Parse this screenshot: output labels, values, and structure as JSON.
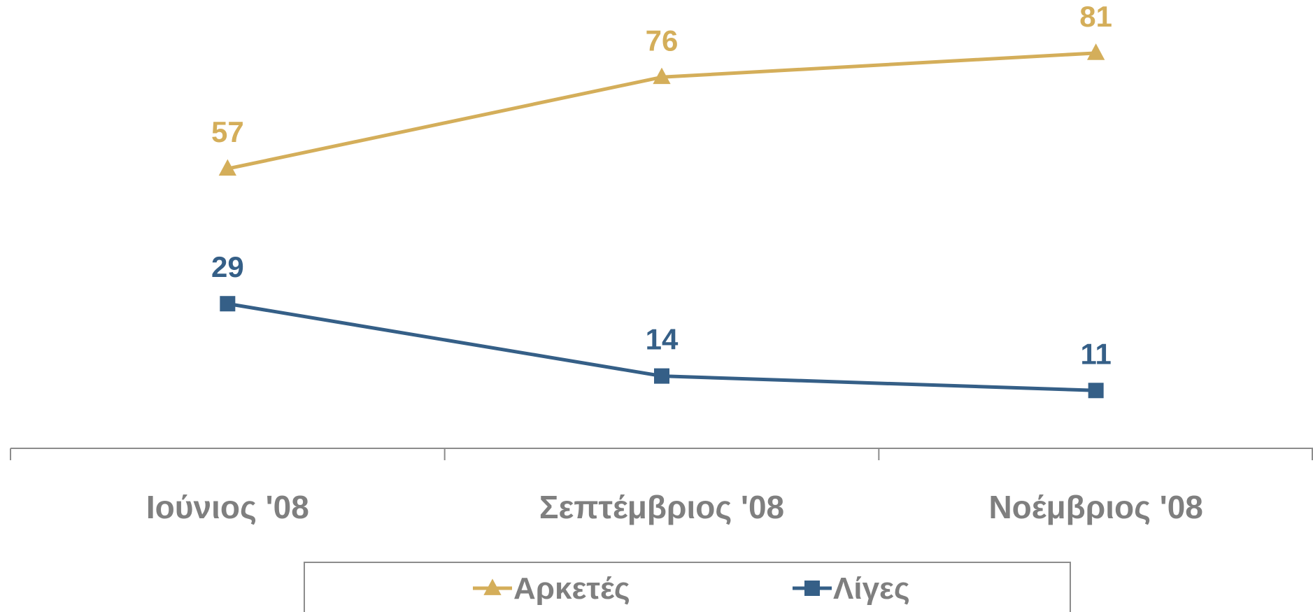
{
  "chart_data": {
    "type": "line",
    "categories": [
      "Ιούνιος '08",
      "Σεπτέμβριος '08",
      "Νοέμβριος '08"
    ],
    "series": [
      {
        "name": "Αρκετές",
        "values": [
          57,
          76,
          81
        ],
        "color": "#d4ae5a",
        "marker": "triangle"
      },
      {
        "name": "Λίγες",
        "values": [
          29,
          14,
          11
        ],
        "color": "#355f87",
        "marker": "square"
      }
    ],
    "ylim": [
      -1,
      92
    ],
    "grid": false,
    "legend": "bottom",
    "colors": {
      "axis": "#8c8c8c",
      "tick_label": "#7f7f7f",
      "legend_border": "#8c8c8c"
    }
  }
}
